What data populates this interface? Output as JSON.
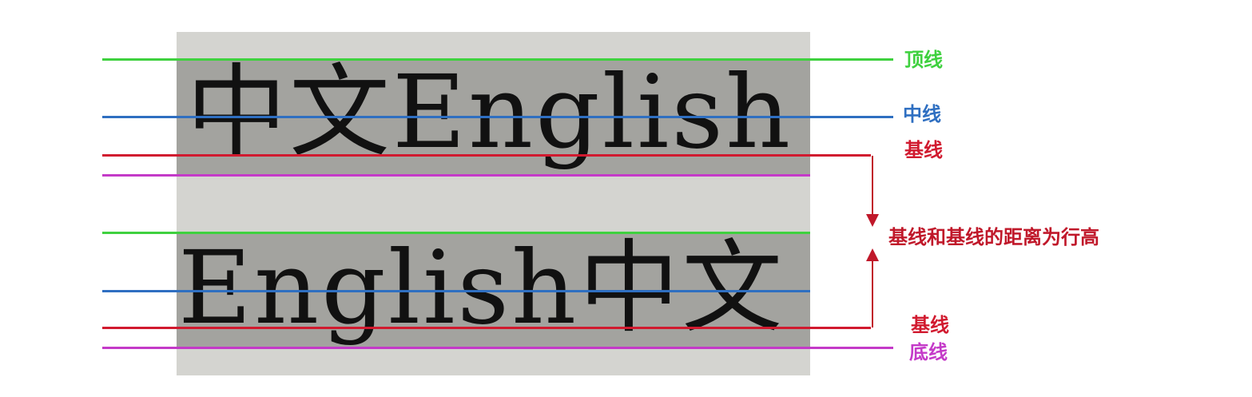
{
  "samples": {
    "line1": "中文English",
    "line2": "English中文"
  },
  "labels": {
    "top_line": "顶线",
    "middle_line": "中线",
    "baseline_1": "基线",
    "line_height_note": "基线和基线的距离为行高",
    "baseline_2": "基线",
    "bottom_line": "底线"
  },
  "colors": {
    "top": "#3fd13f",
    "middle": "#2f6fc1",
    "baseline": "#d11a2f",
    "bottom": "#c43ac8",
    "arrow": "#c0182a",
    "outer_box": "#d4d4d0",
    "text_band": "#a3a39f"
  }
}
